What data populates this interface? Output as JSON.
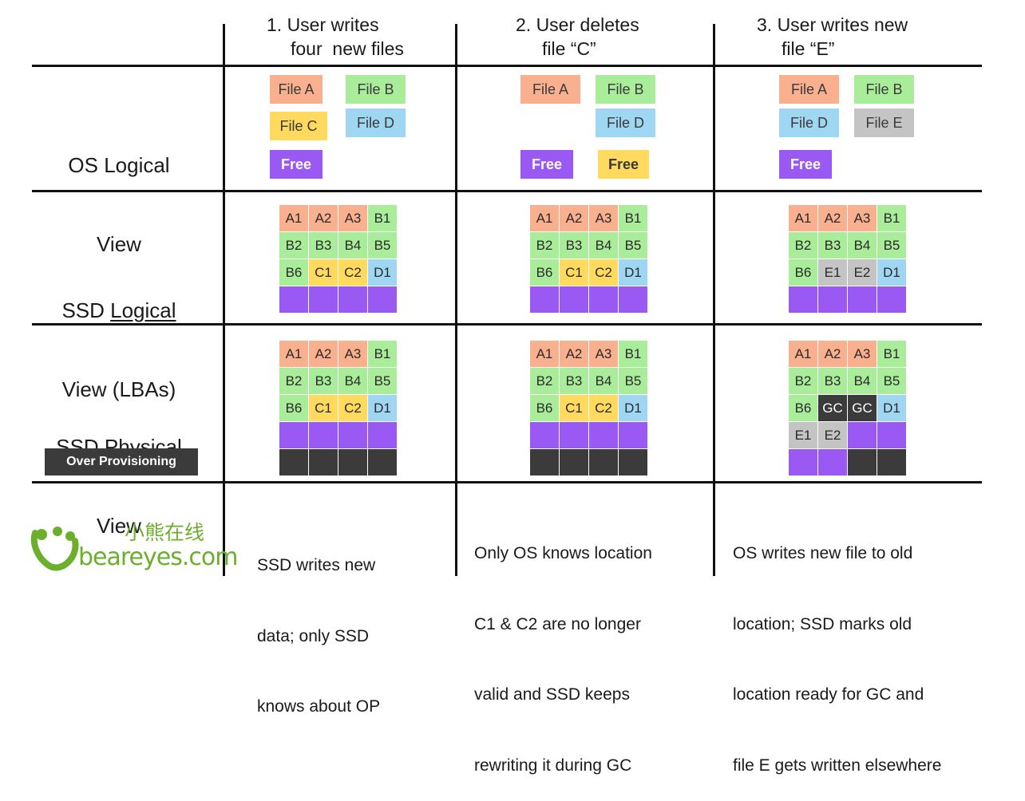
{
  "colors": {
    "orange": "#F9B08F",
    "green": "#A9EC9A",
    "yellow": "#FFDA5E",
    "blue": "#9FD7F2",
    "purple": "#9B59F4",
    "gray": "#C4C4C4",
    "dark": "#3B3B3B",
    "logo_green": "#6BAF2D"
  },
  "headers": [
    {
      "line1": "1. User writes",
      "line2": "four  new files"
    },
    {
      "line1": "2. User deletes",
      "line2": "file “C”"
    },
    {
      "line1": "3. User writes new",
      "line2": "file “E”"
    }
  ],
  "row_labels": {
    "os": {
      "line1": "OS Logical",
      "line2": "View"
    },
    "ssd_logical": {
      "prefix": "SSD ",
      "underlined": "Logical",
      "line2": "View (LBAs)"
    },
    "ssd_physical": {
      "prefix": "SSD ",
      "underlined": "Physical",
      "line2": "View"
    },
    "over_provisioning": "Over Provisioning"
  },
  "os_view": [
    [
      {
        "label": "File A",
        "color": "orange"
      },
      {
        "label": "File B",
        "color": "green"
      },
      {
        "label": "File C",
        "color": "yellow"
      },
      {
        "label": "File D",
        "color": "blue"
      },
      {
        "label": "Free",
        "color": "purple"
      }
    ],
    [
      {
        "label": "File A",
        "color": "orange"
      },
      {
        "label": "File B",
        "color": "green"
      },
      {
        "label": "File D",
        "color": "blue"
      },
      {
        "label": "Free",
        "color": "purple"
      },
      {
        "label": "Free",
        "color": "yellow"
      }
    ],
    [
      {
        "label": "File A",
        "color": "orange"
      },
      {
        "label": "File B",
        "color": "green"
      },
      {
        "label": "File D",
        "color": "blue"
      },
      {
        "label": "File E",
        "color": "gray"
      },
      {
        "label": "Free",
        "color": "purple"
      }
    ]
  ],
  "ssd_logical": [
    [
      [
        {
          "t": "A1",
          "c": "orange"
        },
        {
          "t": "A2",
          "c": "orange"
        },
        {
          "t": "A3",
          "c": "orange"
        },
        {
          "t": "B1",
          "c": "green"
        }
      ],
      [
        {
          "t": "B2",
          "c": "green"
        },
        {
          "t": "B3",
          "c": "green"
        },
        {
          "t": "B4",
          "c": "green"
        },
        {
          "t": "B5",
          "c": "green"
        }
      ],
      [
        {
          "t": "B6",
          "c": "green"
        },
        {
          "t": "C1",
          "c": "yellow"
        },
        {
          "t": "C2",
          "c": "yellow"
        },
        {
          "t": "D1",
          "c": "blue"
        }
      ],
      [
        {
          "t": "",
          "c": "purple"
        },
        {
          "t": "",
          "c": "purple"
        },
        {
          "t": "",
          "c": "purple"
        },
        {
          "t": "",
          "c": "purple"
        }
      ]
    ],
    [
      [
        {
          "t": "A1",
          "c": "orange"
        },
        {
          "t": "A2",
          "c": "orange"
        },
        {
          "t": "A3",
          "c": "orange"
        },
        {
          "t": "B1",
          "c": "green"
        }
      ],
      [
        {
          "t": "B2",
          "c": "green"
        },
        {
          "t": "B3",
          "c": "green"
        },
        {
          "t": "B4",
          "c": "green"
        },
        {
          "t": "B5",
          "c": "green"
        }
      ],
      [
        {
          "t": "B6",
          "c": "green"
        },
        {
          "t": "C1",
          "c": "yellow"
        },
        {
          "t": "C2",
          "c": "yellow"
        },
        {
          "t": "D1",
          "c": "blue"
        }
      ],
      [
        {
          "t": "",
          "c": "purple"
        },
        {
          "t": "",
          "c": "purple"
        },
        {
          "t": "",
          "c": "purple"
        },
        {
          "t": "",
          "c": "purple"
        }
      ]
    ],
    [
      [
        {
          "t": "A1",
          "c": "orange"
        },
        {
          "t": "A2",
          "c": "orange"
        },
        {
          "t": "A3",
          "c": "orange"
        },
        {
          "t": "B1",
          "c": "green"
        }
      ],
      [
        {
          "t": "B2",
          "c": "green"
        },
        {
          "t": "B3",
          "c": "green"
        },
        {
          "t": "B4",
          "c": "green"
        },
        {
          "t": "B5",
          "c": "green"
        }
      ],
      [
        {
          "t": "B6",
          "c": "green"
        },
        {
          "t": "E1",
          "c": "gray"
        },
        {
          "t": "E2",
          "c": "gray"
        },
        {
          "t": "D1",
          "c": "blue"
        }
      ],
      [
        {
          "t": "",
          "c": "purple"
        },
        {
          "t": "",
          "c": "purple"
        },
        {
          "t": "",
          "c": "purple"
        },
        {
          "t": "",
          "c": "purple"
        }
      ]
    ]
  ],
  "ssd_physical": [
    [
      [
        {
          "t": "A1",
          "c": "orange"
        },
        {
          "t": "A2",
          "c": "orange"
        },
        {
          "t": "A3",
          "c": "orange"
        },
        {
          "t": "B1",
          "c": "green"
        }
      ],
      [
        {
          "t": "B2",
          "c": "green"
        },
        {
          "t": "B3",
          "c": "green"
        },
        {
          "t": "B4",
          "c": "green"
        },
        {
          "t": "B5",
          "c": "green"
        }
      ],
      [
        {
          "t": "B6",
          "c": "green"
        },
        {
          "t": "C1",
          "c": "yellow"
        },
        {
          "t": "C2",
          "c": "yellow"
        },
        {
          "t": "D1",
          "c": "blue"
        }
      ],
      [
        {
          "t": "",
          "c": "purple"
        },
        {
          "t": "",
          "c": "purple"
        },
        {
          "t": "",
          "c": "purple"
        },
        {
          "t": "",
          "c": "purple"
        }
      ],
      [
        {
          "t": "",
          "c": "dark"
        },
        {
          "t": "",
          "c": "dark"
        },
        {
          "t": "",
          "c": "dark"
        },
        {
          "t": "",
          "c": "dark"
        }
      ]
    ],
    [
      [
        {
          "t": "A1",
          "c": "orange"
        },
        {
          "t": "A2",
          "c": "orange"
        },
        {
          "t": "A3",
          "c": "orange"
        },
        {
          "t": "B1",
          "c": "green"
        }
      ],
      [
        {
          "t": "B2",
          "c": "green"
        },
        {
          "t": "B3",
          "c": "green"
        },
        {
          "t": "B4",
          "c": "green"
        },
        {
          "t": "B5",
          "c": "green"
        }
      ],
      [
        {
          "t": "B6",
          "c": "green"
        },
        {
          "t": "C1",
          "c": "yellow"
        },
        {
          "t": "C2",
          "c": "yellow"
        },
        {
          "t": "D1",
          "c": "blue"
        }
      ],
      [
        {
          "t": "",
          "c": "purple"
        },
        {
          "t": "",
          "c": "purple"
        },
        {
          "t": "",
          "c": "purple"
        },
        {
          "t": "",
          "c": "purple"
        }
      ],
      [
        {
          "t": "",
          "c": "dark"
        },
        {
          "t": "",
          "c": "dark"
        },
        {
          "t": "",
          "c": "dark"
        },
        {
          "t": "",
          "c": "dark"
        }
      ]
    ],
    [
      [
        {
          "t": "A1",
          "c": "orange"
        },
        {
          "t": "A2",
          "c": "orange"
        },
        {
          "t": "A3",
          "c": "orange"
        },
        {
          "t": "B1",
          "c": "green"
        }
      ],
      [
        {
          "t": "B2",
          "c": "green"
        },
        {
          "t": "B3",
          "c": "green"
        },
        {
          "t": "B4",
          "c": "green"
        },
        {
          "t": "B5",
          "c": "green"
        }
      ],
      [
        {
          "t": "B6",
          "c": "green"
        },
        {
          "t": "GC",
          "c": "dark"
        },
        {
          "t": "GC",
          "c": "dark"
        },
        {
          "t": "D1",
          "c": "blue"
        }
      ],
      [
        {
          "t": "E1",
          "c": "gray"
        },
        {
          "t": "E2",
          "c": "gray"
        },
        {
          "t": "",
          "c": "purple"
        },
        {
          "t": "",
          "c": "purple"
        }
      ],
      [
        {
          "t": "",
          "c": "purple"
        },
        {
          "t": "",
          "c": "purple"
        },
        {
          "t": "",
          "c": "dark"
        },
        {
          "t": "",
          "c": "dark"
        }
      ]
    ]
  ],
  "descriptions": [
    [
      "SSD writes new",
      "data; only SSD",
      "knows about OP"
    ],
    [
      "Only OS knows location",
      "C1 & C2 are no longer",
      "valid and SSD keeps",
      "rewriting it during GC"
    ],
    [
      "OS writes new file to old",
      "location; SSD marks old",
      "location ready for GC and",
      "file E gets written elsewhere"
    ]
  ],
  "logo": {
    "chinese": "小熊在线",
    "site": "beareyes.com",
    "icon": "bear-paw-icon"
  }
}
